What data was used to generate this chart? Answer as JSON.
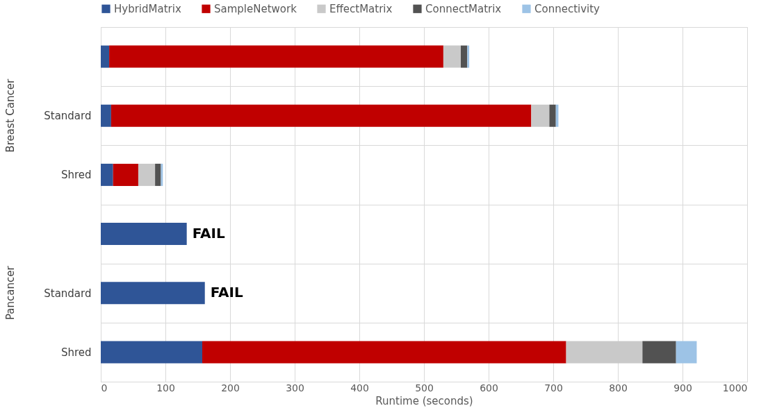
{
  "chart_data": {
    "type": "bar",
    "orientation": "horizontal",
    "stacked": true,
    "xlabel": "Runtime (seconds)",
    "categories": [
      null,
      "Standard",
      "Shred",
      null,
      "Standard",
      "Shred"
    ],
    "series": [
      {
        "name": "HybridMatrix",
        "color": "#2f5597",
        "values": [
          13,
          16,
          19,
          133,
          161,
          157
        ],
        "value_labels": [
          null,
          null,
          null,
          "FAIL",
          "FAIL",
          null
        ]
      },
      {
        "name": "SampleNetwork",
        "color": "#c00000",
        "values": [
          517,
          650,
          39,
          null,
          null,
          563
        ]
      },
      {
        "name": "EffectMatrix",
        "color": "#c9c9c9",
        "values": [
          27,
          28,
          26,
          null,
          null,
          118
        ]
      },
      {
        "name": "ConnectMatrix",
        "color": "#525252",
        "values": [
          10,
          10,
          9,
          null,
          null,
          52
        ]
      },
      {
        "name": "Connectivity",
        "color": "#9dc3e6",
        "values": [
          3,
          4,
          3,
          null,
          null,
          32
        ]
      }
    ],
    "annotations": [
      "Breast Cancer",
      "Pancancer"
    ],
    "xlim": [
      0,
      1000
    ],
    "xticks": [
      0,
      100,
      200,
      300,
      400,
      500,
      600,
      700,
      800,
      900,
      1000
    ],
    "grid": true,
    "legend": "top"
  }
}
